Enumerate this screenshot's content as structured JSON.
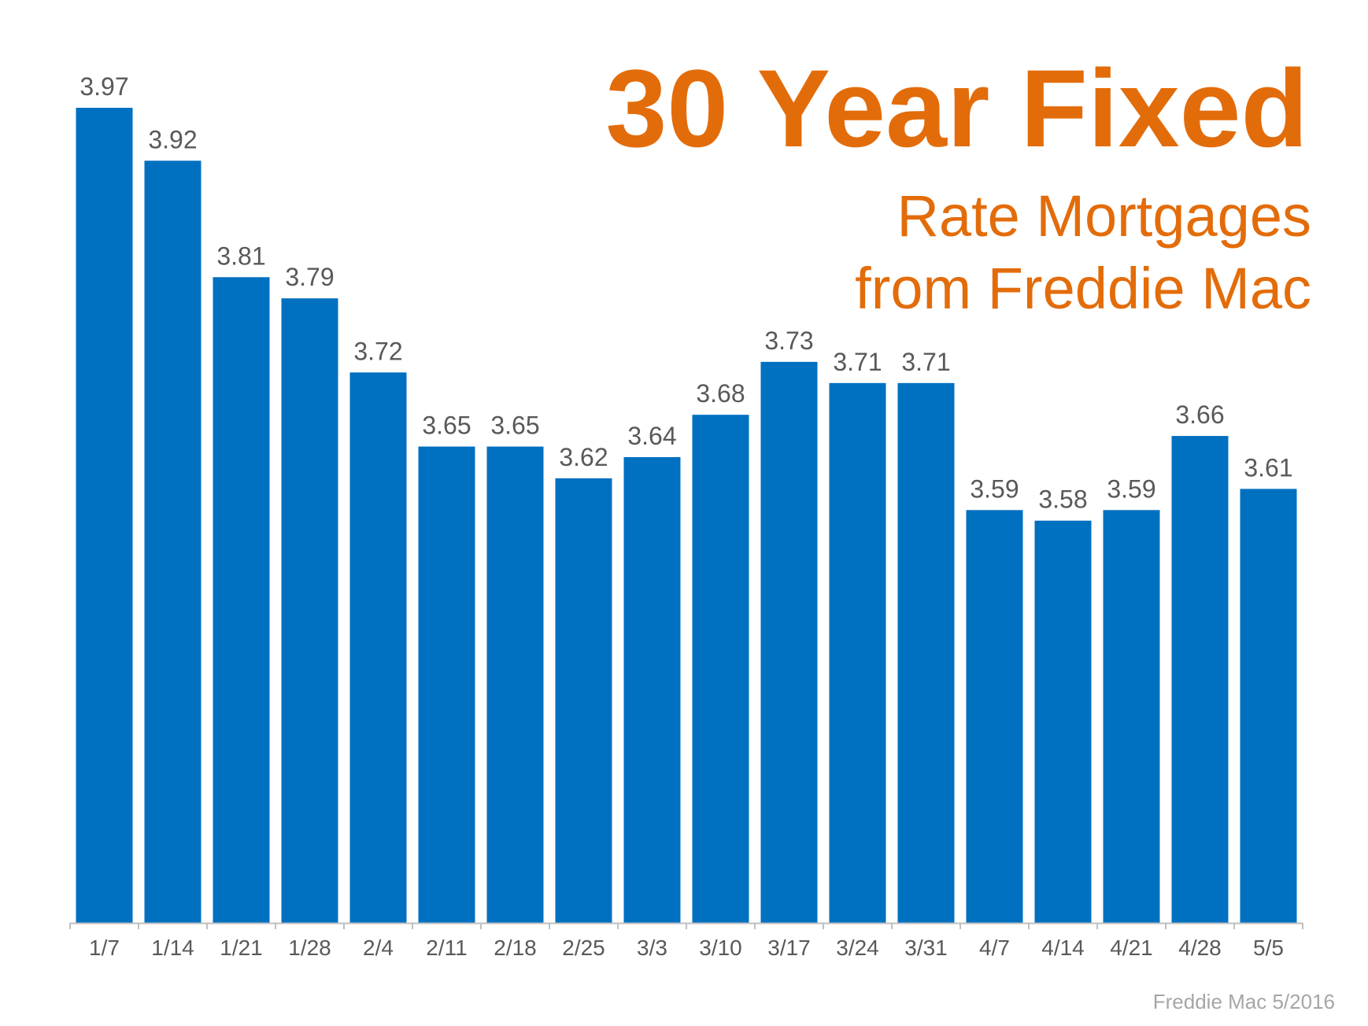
{
  "chart_data": {
    "type": "bar",
    "title": "30 Year Fixed",
    "subtitle_lines": [
      "Rate Mortgages",
      "from Freddie Mac"
    ],
    "source": "Freddie Mac 5/2016",
    "categories": [
      "1/7",
      "1/14",
      "1/21",
      "1/28",
      "2/4",
      "2/11",
      "2/18",
      "2/25",
      "3/3",
      "3/10",
      "3/17",
      "3/24",
      "3/31",
      "4/7",
      "4/14",
      "4/21",
      "4/28",
      "5/5"
    ],
    "values": [
      3.97,
      3.92,
      3.81,
      3.79,
      3.72,
      3.65,
      3.65,
      3.62,
      3.64,
      3.68,
      3.73,
      3.71,
      3.71,
      3.59,
      3.58,
      3.59,
      3.66,
      3.61
    ],
    "data_labels": [
      "3.97",
      "3.92",
      "3.81",
      "3.79",
      "3.72",
      "3.65",
      "3.65",
      "3.62",
      "3.64",
      "3.68",
      "3.73",
      "3.71",
      "3.71",
      "3.59",
      "3.58",
      "3.59",
      "3.66",
      "3.61"
    ],
    "xlabel": "",
    "ylabel": "",
    "ylim": [
      3.2,
      3.97
    ],
    "y_axis_visible": false,
    "grid": false,
    "legend": "none",
    "colors": {
      "bar": "#0070c0",
      "title": "#e36c0a",
      "data_label": "#595959",
      "tick_label": "#595959",
      "axis": "#bfbfbf",
      "source": "#a6a6a6"
    }
  }
}
